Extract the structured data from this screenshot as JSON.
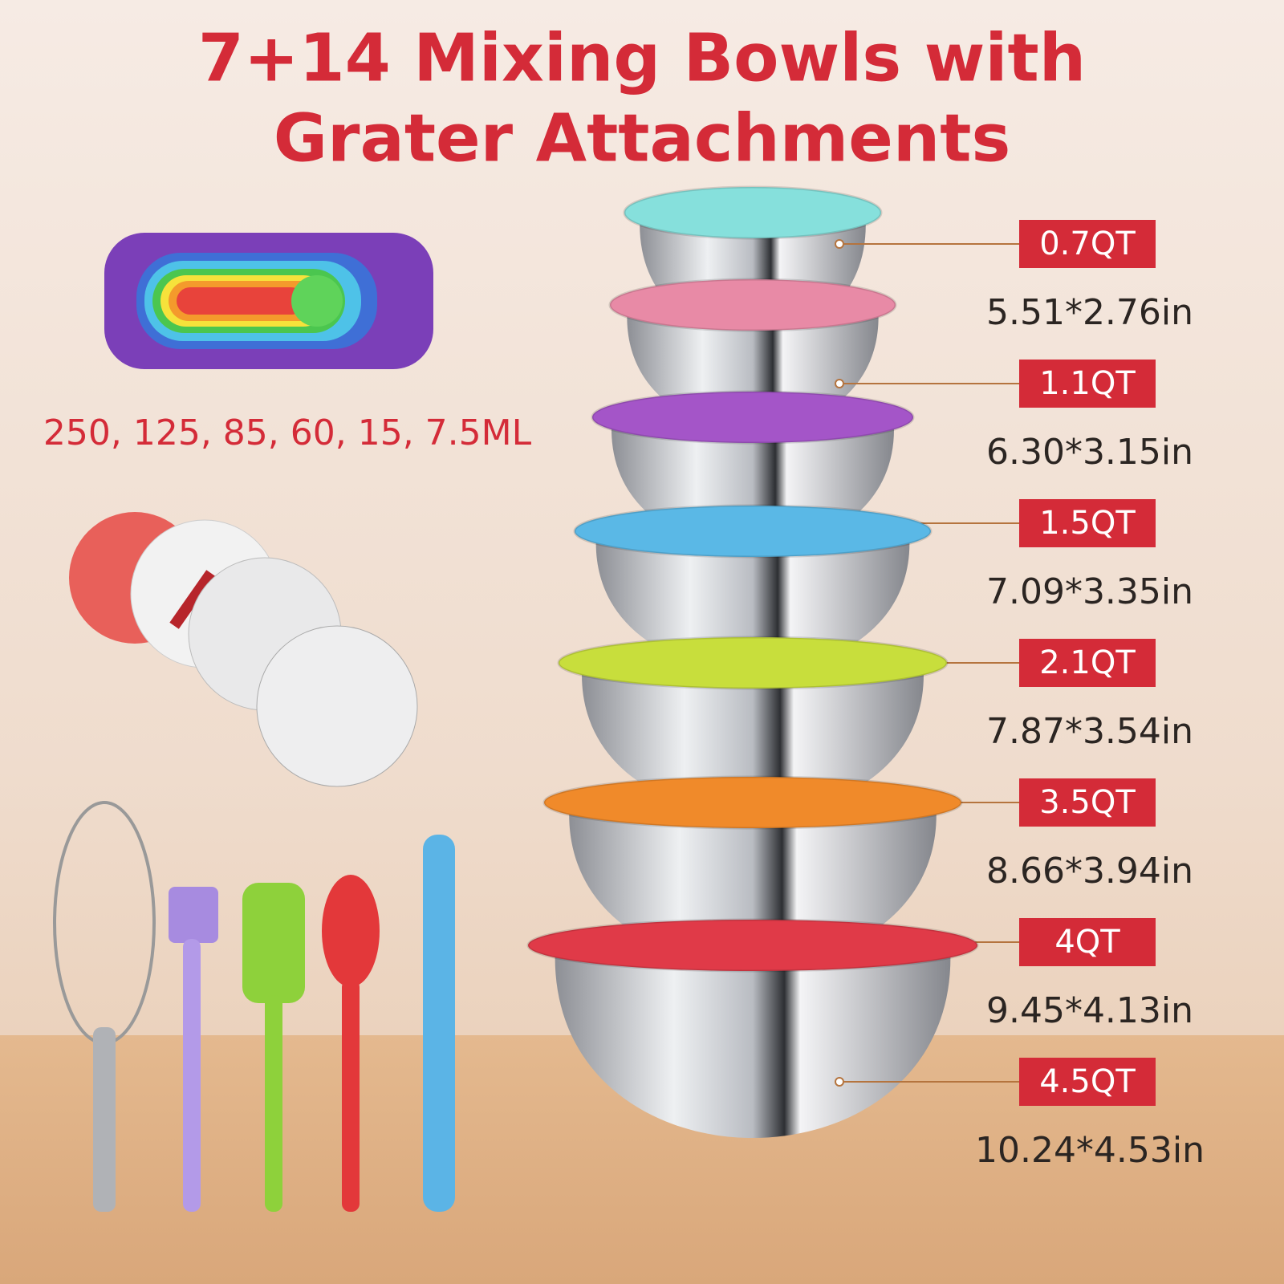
{
  "title_lines": [
    "7+14 Mixing Bowls with",
    "Grater Attachments"
  ],
  "measuring_cups_label": "250, 125, 85, 60, 15, 7.5ML",
  "bowls": [
    {
      "capacity": "0.7QT",
      "size": "5.51*2.76in"
    },
    {
      "capacity": "1.1QT",
      "size": "6.30*3.15in"
    },
    {
      "capacity": "1.5QT",
      "size": "7.09*3.35in"
    },
    {
      "capacity": "2.1QT",
      "size": "7.87*3.54in"
    },
    {
      "capacity": "3.5QT",
      "size": "8.66*3.94in"
    },
    {
      "capacity": "4QT",
      "size": "9.45*4.13in"
    },
    {
      "capacity": "4.5QT",
      "size": "10.24*4.53in"
    }
  ]
}
